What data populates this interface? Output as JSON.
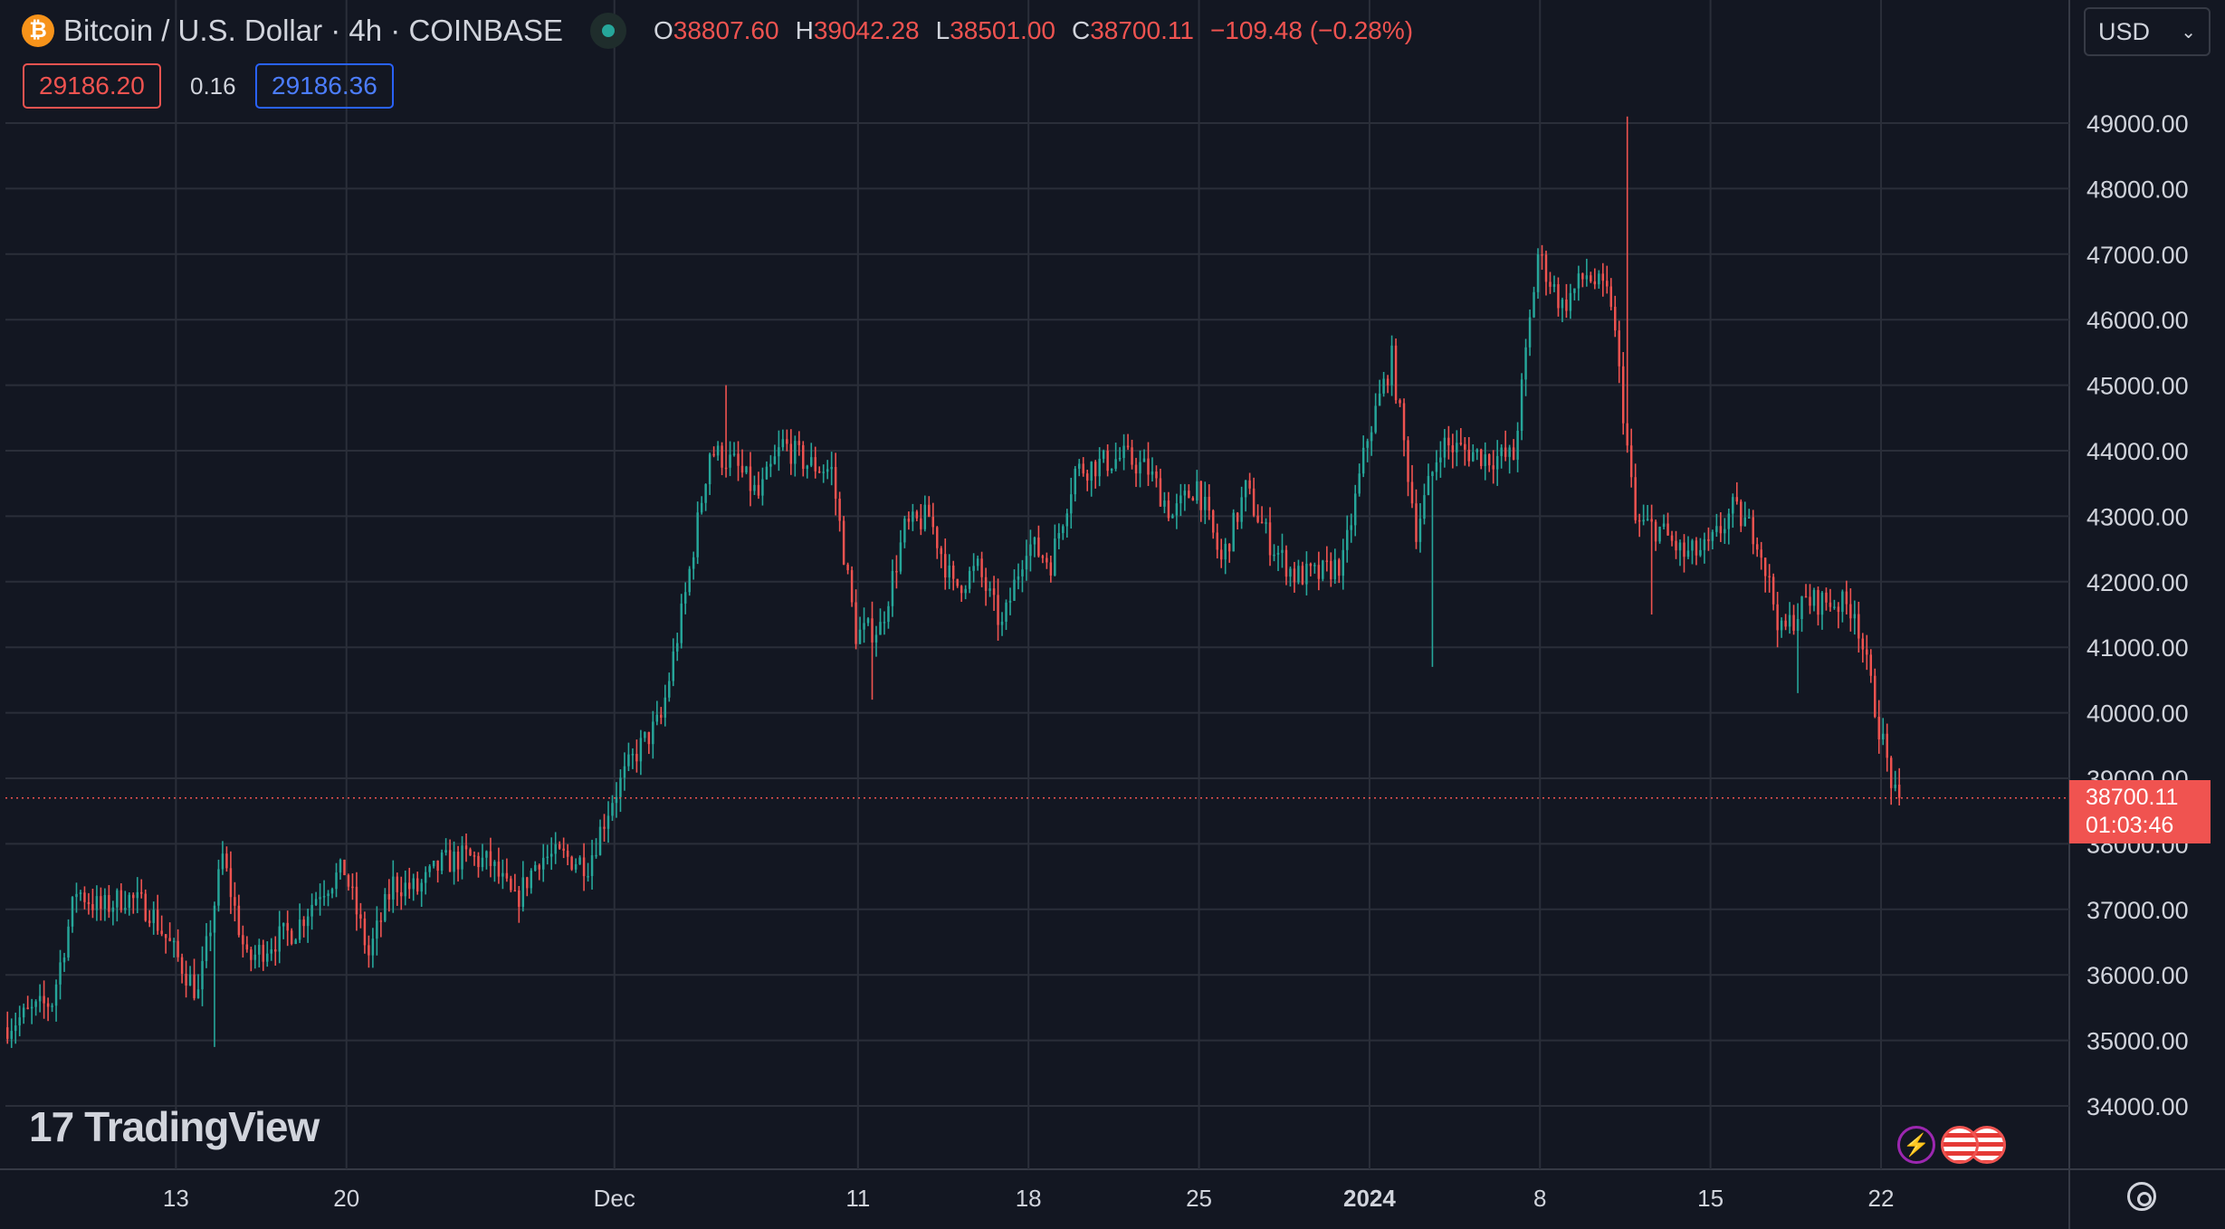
{
  "header": {
    "coin_glyph": "₿",
    "symbol": "Bitcoin / U.S. Dollar · 4h · COINBASE",
    "ohlc": {
      "o_label": "O",
      "o": "38807.60",
      "h_label": "H",
      "h": "39042.28",
      "l_label": "L",
      "l": "38501.00",
      "c_label": "C",
      "c": "38700.11",
      "change": "−109.48 (−0.28%)"
    }
  },
  "quote": {
    "bid": "29186.20",
    "spread": "0.16",
    "ask": "29186.36"
  },
  "currency": {
    "selected": "USD"
  },
  "last_price": {
    "price": "38700.11",
    "countdown": "01:03:46"
  },
  "logo": {
    "text": "TradingView"
  },
  "icons": {
    "coin": "bitcoin-icon",
    "status": "market-status-icon",
    "event1": "lightning-icon",
    "event2": "us-flag-icon",
    "settings": "gear-icon"
  },
  "colors": {
    "bg": "#131722",
    "up": "#26a69a",
    "down": "#ef5350",
    "grid": "#2a2e39",
    "text": "#d1d4dc"
  },
  "chart_data": {
    "type": "candlestick",
    "interval": "4h",
    "ylim": [
      33400,
      49800
    ],
    "y_ticks": [
      "34000.00",
      "35000.00",
      "36000.00",
      "37000.00",
      "38000.00",
      "39000.00",
      "40000.00",
      "41000.00",
      "42000.00",
      "43000.00",
      "44000.00",
      "45000.00",
      "46000.00",
      "47000.00",
      "48000.00",
      "49000.00"
    ],
    "x_ticks": [
      {
        "label": "13",
        "date": "2023-11-13"
      },
      {
        "label": "20",
        "date": "2023-11-20"
      },
      {
        "label": "Dec",
        "date": "2023-12-01"
      },
      {
        "label": "11",
        "date": "2023-12-11"
      },
      {
        "label": "18",
        "date": "2023-12-18"
      },
      {
        "label": "25",
        "date": "2023-12-25"
      },
      {
        "label": "2024",
        "date": "2024-01-01"
      },
      {
        "label": "8",
        "date": "2024-01-08"
      },
      {
        "label": "15",
        "date": "2024-01-15"
      },
      {
        "label": "22",
        "date": "2024-01-22"
      }
    ],
    "x_range": [
      "2023-11-06",
      "2024-02-01"
    ],
    "last_close": 38700.11,
    "anchors": [
      [
        "2023-11-06",
        35200
      ],
      [
        "2023-11-08",
        35600
      ],
      [
        "2023-11-09",
        37300
      ],
      [
        "2023-11-10",
        37000
      ],
      [
        "2023-11-11",
        37200
      ],
      [
        "2023-11-12",
        37000
      ],
      [
        "2023-11-14",
        35700
      ],
      [
        "2023-11-15",
        37800
      ],
      [
        "2023-11-16",
        36200
      ],
      [
        "2023-11-17",
        36500
      ],
      [
        "2023-11-18",
        36700
      ],
      [
        "2023-11-19",
        37300
      ],
      [
        "2023-11-20",
        37600
      ],
      [
        "2023-11-21",
        36300
      ],
      [
        "2023-11-22",
        37400
      ],
      [
        "2023-11-23",
        37300
      ],
      [
        "2023-11-24",
        37700
      ],
      [
        "2023-11-25",
        37800
      ],
      [
        "2023-11-26",
        37700
      ],
      [
        "2023-11-27",
        37100
      ],
      [
        "2023-11-28",
        37800
      ],
      [
        "2023-11-29",
        37800
      ],
      [
        "2023-11-30",
        37700
      ],
      [
        "2023-12-01",
        38700
      ],
      [
        "2023-12-02",
        39400
      ],
      [
        "2023-12-03",
        39900
      ],
      [
        "2023-12-04",
        41800
      ],
      [
        "2023-12-05",
        44000
      ],
      [
        "2023-12-06",
        43800
      ],
      [
        "2023-12-07",
        43300
      ],
      [
        "2023-12-08",
        44100
      ],
      [
        "2023-12-09",
        43800
      ],
      [
        "2023-12-10",
        43700
      ],
      [
        "2023-12-11",
        41200
      ],
      [
        "2023-12-12",
        41300
      ],
      [
        "2023-12-13",
        42800
      ],
      [
        "2023-12-14",
        43000
      ],
      [
        "2023-12-15",
        41900
      ],
      [
        "2023-12-16",
        42200
      ],
      [
        "2023-12-17",
        41300
      ],
      [
        "2023-12-18",
        42600
      ],
      [
        "2023-12-19",
        42300
      ],
      [
        "2023-12-20",
        43700
      ],
      [
        "2023-12-21",
        43800
      ],
      [
        "2023-12-22",
        43900
      ],
      [
        "2023-12-23",
        43700
      ],
      [
        "2023-12-24",
        43000
      ],
      [
        "2023-12-25",
        43500
      ],
      [
        "2023-12-26",
        42300
      ],
      [
        "2023-12-27",
        43400
      ],
      [
        "2023-12-28",
        42600
      ],
      [
        "2023-12-29",
        42100
      ],
      [
        "2023-12-30",
        42100
      ],
      [
        "2023-12-31",
        42300
      ],
      [
        "2024-01-01",
        44200
      ],
      [
        "2024-01-02",
        45400
      ],
      [
        "2024-01-03",
        42800
      ],
      [
        "2024-01-04",
        44100
      ],
      [
        "2024-01-05",
        44000
      ],
      [
        "2024-01-06",
        43900
      ],
      [
        "2024-01-07",
        43900
      ],
      [
        "2024-01-08",
        47000
      ],
      [
        "2024-01-09",
        46200
      ],
      [
        "2024-01-10",
        46700
      ],
      [
        "2024-01-11",
        46300
      ],
      [
        "2024-01-12",
        42900
      ],
      [
        "2024-01-13",
        42800
      ],
      [
        "2024-01-14",
        42400
      ],
      [
        "2024-01-15",
        42500
      ],
      [
        "2024-01-16",
        43100
      ],
      [
        "2024-01-17",
        42700
      ],
      [
        "2024-01-18",
        41200
      ],
      [
        "2024-01-19",
        41700
      ],
      [
        "2024-01-20",
        41700
      ],
      [
        "2024-01-21",
        41600
      ],
      [
        "2024-01-22",
        39800
      ],
      [
        "2024-01-22T16:00",
        38700
      ]
    ],
    "wick_extremes": [
      {
        "date": "2023-11-14",
        "low": 34900
      },
      {
        "date": "2023-12-05",
        "high": 45000
      },
      {
        "date": "2023-12-11",
        "low": 40200
      },
      {
        "date": "2024-01-03",
        "low": 40700
      },
      {
        "date": "2024-01-11",
        "high": 49100
      },
      {
        "date": "2024-01-12",
        "low": 41500
      },
      {
        "date": "2024-01-18",
        "low": 40300
      }
    ]
  }
}
